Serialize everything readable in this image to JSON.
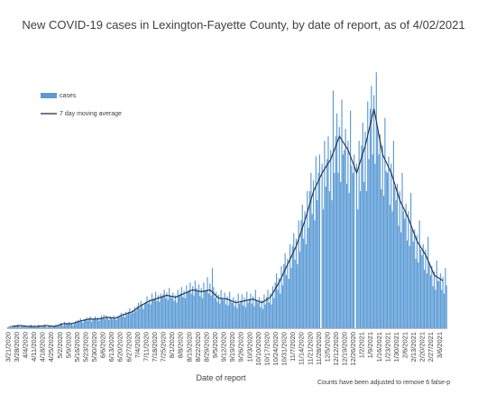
{
  "chart_data": {
    "type": "bar",
    "title": "New COVID-19 cases in Lexington-Fayette County, by date of report, as of 4/02/2021",
    "xlabel": "Date of report",
    "ylabel": "",
    "footnote": "Counts have been adjusted to remove 6 false-p",
    "series": [
      {
        "name": "cases",
        "kind": "bar",
        "color": "#5b9bd5"
      },
      {
        "name": "7 day moving average",
        "kind": "line",
        "color": "#1f2a44"
      }
    ],
    "legend_position": "top-left",
    "grid": false,
    "tick_labels": [
      "3/21/2020",
      "3/28/2020",
      "4/4/2020",
      "4/11/2020",
      "4/18/2020",
      "4/25/2020",
      "5/2/2020",
      "5/9/2020",
      "5/16/2020",
      "5/23/2020",
      "5/30/2020",
      "6/6/2020",
      "6/13/2020",
      "6/20/2020",
      "6/27/2020",
      "7/4/2020",
      "7/11/2020",
      "7/18/2020",
      "7/25/2020",
      "8/1/2020",
      "8/8/2020",
      "8/15/2020",
      "8/22/2020",
      "8/29/2020",
      "9/5/2020",
      "9/12/2020",
      "9/19/2020",
      "9/26/2020",
      "10/3/2020",
      "10/10/2020",
      "10/17/2020",
      "10/24/2020",
      "10/31/2020",
      "11/7/2020",
      "11/14/2020",
      "11/21/2020",
      "11/28/2020",
      "12/5/2020",
      "12/12/2020",
      "12/19/2020",
      "12/26/2020",
      "1/2/2021",
      "1/9/2021",
      "1/16/2021",
      "1/23/2021",
      "1/30/2021",
      "2/6/2021",
      "2/13/2021",
      "2/20/2021",
      "2/27/2021",
      "3/6/2021"
    ],
    "weekly_average": [
      2,
      3,
      2,
      2,
      3,
      2,
      5,
      5,
      8,
      10,
      10,
      12,
      11,
      15,
      18,
      25,
      30,
      33,
      36,
      34,
      38,
      42,
      40,
      42,
      33,
      32,
      28,
      30,
      32,
      28,
      34,
      50,
      70,
      90,
      118,
      150,
      170,
      185,
      210,
      195,
      170,
      200,
      240,
      190,
      170,
      140,
      120,
      95,
      80,
      58,
      52
    ],
    "daily_cases": [
      1,
      2,
      3,
      2,
      1,
      2,
      3,
      2,
      4,
      3,
      1,
      2,
      3,
      2,
      3,
      2,
      1,
      2,
      3,
      4,
      2,
      2,
      3,
      1,
      2,
      4,
      2,
      1,
      3,
      2,
      4,
      2,
      1,
      3,
      2,
      2,
      1,
      3,
      2,
      4,
      2,
      3,
      4,
      6,
      5,
      3,
      7,
      4,
      6,
      5,
      7,
      4,
      6,
      3,
      5,
      8,
      6,
      9,
      7,
      11,
      8,
      6,
      10,
      9,
      12,
      8,
      11,
      13,
      7,
      10,
      10,
      13,
      9,
      12,
      8,
      11,
      14,
      11,
      15,
      10,
      14,
      12,
      9,
      13,
      12,
      10,
      14,
      11,
      9,
      13,
      12,
      14,
      17,
      13,
      16,
      12,
      18,
      15,
      18,
      22,
      16,
      20,
      17,
      23,
      19,
      24,
      28,
      22,
      30,
      26,
      21,
      27,
      29,
      35,
      27,
      32,
      26,
      38,
      31,
      33,
      40,
      30,
      36,
      29,
      38,
      34,
      37,
      42,
      33,
      39,
      31,
      44,
      36,
      33,
      39,
      30,
      36,
      28,
      42,
      35,
      38,
      45,
      34,
      41,
      33,
      47,
      40,
      42,
      50,
      38,
      46,
      36,
      52,
      44,
      40,
      48,
      35,
      44,
      33,
      50,
      41,
      42,
      56,
      38,
      49,
      36,
      66,
      45,
      33,
      40,
      29,
      37,
      27,
      42,
      32,
      31,
      39,
      26,
      35,
      25,
      40,
      30,
      28,
      34,
      24,
      31,
      22,
      38,
      27,
      30,
      37,
      25,
      34,
      23,
      40,
      28,
      32,
      38,
      27,
      35,
      24,
      42,
      31,
      28,
      34,
      23,
      31,
      21,
      37,
      26,
      34,
      42,
      28,
      38,
      26,
      46,
      33,
      50,
      60,
      42,
      55,
      38,
      68,
      47,
      70,
      82,
      58,
      76,
      54,
      92,
      66,
      90,
      104,
      75,
      98,
      70,
      118,
      84,
      118,
      135,
      98,
      128,
      92,
      150,
      110,
      150,
      170,
      125,
      162,
      118,
      188,
      140,
      170,
      190,
      0,
      180,
      130,
      205,
      155,
      185,
      210,
      150,
      195,
      140,
      260,
      170,
      210,
      235,
      170,
      220,
      160,
      250,
      190,
      195,
      218,
      158,
      205,
      148,
      238,
      178,
      170,
      190,
      0,
      180,
      130,
      205,
      150,
      200,
      225,
      160,
      215,
      150,
      248,
      185,
      240,
      265,
      190,
      255,
      180,
      280,
      220,
      190,
      212,
      152,
      200,
      145,
      230,
      172,
      170,
      188,
      135,
      180,
      128,
      205,
      155,
      140,
      158,
      112,
      150,
      105,
      170,
      128,
      120,
      136,
      96,
      128,
      90,
      148,
      108,
      95,
      108,
      76,
      102,
      72,
      118,
      86,
      80,
      92,
      64,
      86,
      60,
      100,
      72,
      58,
      68,
      46,
      62,
      42,
      74,
      52,
      52,
      60,
      42,
      56,
      38,
      66,
      47
    ]
  }
}
